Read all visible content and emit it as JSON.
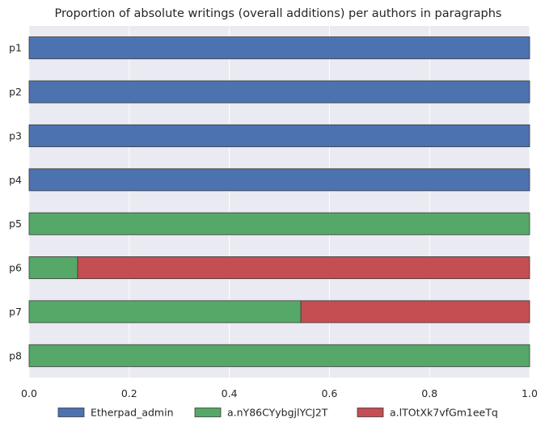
{
  "chart_data": {
    "type": "bar",
    "orientation": "horizontal",
    "stacked": true,
    "title": "Proportion of absolute writings (overall additions) per authors in paragraphs",
    "xlabel": "",
    "ylabel": "",
    "xlim": [
      0.0,
      1.0
    ],
    "x_ticks": [
      "0.0",
      "0.2",
      "0.4",
      "0.6",
      "0.8",
      "1.0"
    ],
    "categories": [
      "p1",
      "p2",
      "p3",
      "p4",
      "p5",
      "p6",
      "p7",
      "p8"
    ],
    "series": [
      {
        "name": "Etherpad_admin",
        "color": "#4c72b0",
        "values": [
          1,
          1,
          1,
          1,
          0,
          0,
          0,
          0
        ]
      },
      {
        "name": "a.nY86CYybgjlYCJ2T",
        "color": "#55a868",
        "values": [
          0,
          0,
          0,
          0,
          1,
          0.097,
          0.543,
          1
        ]
      },
      {
        "name": "a.lTOtXk7vfGm1eeTq",
        "color": "#c44e52",
        "values": [
          0,
          0,
          0,
          0,
          0,
          0.903,
          0.457,
          0
        ]
      }
    ],
    "grid": true,
    "legend_position": "bottom"
  }
}
